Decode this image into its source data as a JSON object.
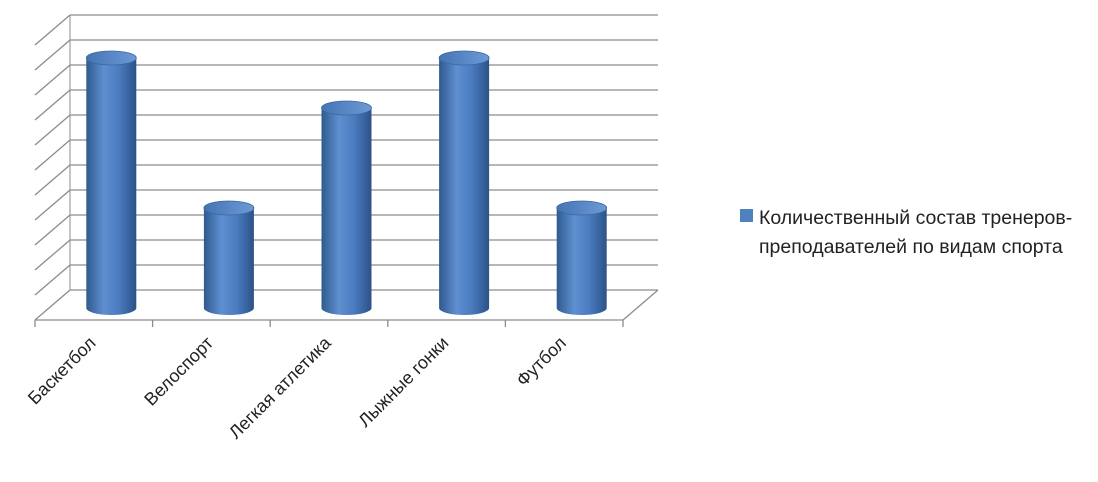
{
  "chart_data": {
    "type": "bar",
    "style": "3d-cylinder",
    "categories": [
      "Баскетбол",
      "Велоспорт",
      "Легкая атлетика",
      "Лыжные гонки",
      "Футбол"
    ],
    "series": [
      {
        "name": "Количественный состав тренеров-преподавателей по видам спорта",
        "values": [
          10,
          4,
          8,
          10,
          4
        ],
        "color": "#4f81bd"
      }
    ],
    "ylim": [
      0,
      11
    ],
    "y_tick_labels_shown": false,
    "grid": true,
    "legend_position": "right"
  }
}
